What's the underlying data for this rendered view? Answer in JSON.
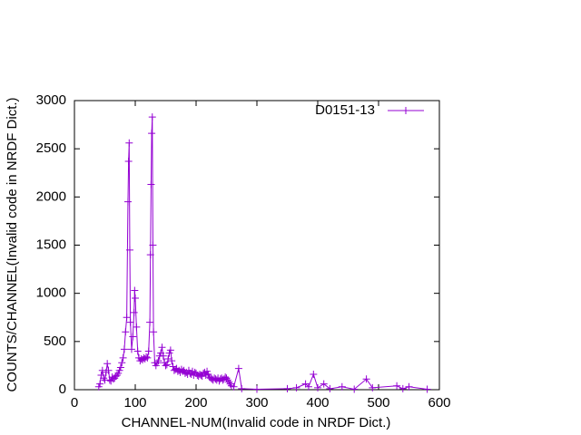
{
  "chart_data": {
    "type": "line",
    "x_label": "CHANNEL-NUM(Invalid code in NRDF Dict.)",
    "y_label": "COUNTS/CHANNEL(Invalid code in NRDF Dict.)",
    "xlim": [
      0,
      600
    ],
    "ylim": [
      0,
      3000
    ],
    "xticks": [
      0,
      100,
      200,
      300,
      400,
      500,
      600
    ],
    "yticks": [
      0,
      500,
      1000,
      1500,
      2000,
      2500,
      3000
    ],
    "grid": false,
    "legend": "top-right",
    "x": [
      40,
      42,
      44,
      46,
      48,
      50,
      52,
      54,
      56,
      58,
      60,
      62,
      64,
      66,
      68,
      70,
      72,
      74,
      76,
      78,
      80,
      82,
      84,
      86,
      88,
      89,
      90,
      91,
      92,
      94,
      96,
      98,
      99,
      100,
      102,
      104,
      106,
      108,
      110,
      112,
      114,
      116,
      118,
      120,
      122,
      124,
      125,
      126,
      127,
      128,
      129,
      130,
      132,
      134,
      136,
      138,
      140,
      142,
      144,
      146,
      148,
      150,
      152,
      154,
      156,
      158,
      160,
      162,
      164,
      166,
      168,
      170,
      172,
      174,
      176,
      178,
      180,
      182,
      184,
      186,
      188,
      190,
      192,
      194,
      196,
      198,
      200,
      202,
      204,
      206,
      208,
      210,
      212,
      214,
      216,
      218,
      220,
      222,
      224,
      226,
      228,
      230,
      232,
      234,
      236,
      238,
      240,
      242,
      244,
      246,
      248,
      250,
      252,
      254,
      256,
      258,
      262,
      270,
      275,
      300,
      350,
      365,
      380,
      385,
      393,
      400,
      410,
      420,
      440,
      460,
      480,
      490,
      530,
      540,
      550,
      580
    ],
    "series": [
      {
        "name": "D0151-13",
        "color": "#9400d3",
        "values": [
          30,
          60,
          150,
          200,
          120,
          100,
          180,
          270,
          200,
          100,
          90,
          130,
          110,
          120,
          140,
          150,
          170,
          200,
          230,
          280,
          330,
          420,
          600,
          750,
          1950,
          2370,
          2560,
          1450,
          700,
          420,
          550,
          800,
          1030,
          950,
          650,
          400,
          330,
          300,
          320,
          310,
          330,
          320,
          340,
          330,
          400,
          700,
          1400,
          2130,
          2660,
          2830,
          1500,
          600,
          280,
          250,
          280,
          300,
          350,
          380,
          440,
          350,
          280,
          250,
          260,
          320,
          380,
          410,
          300,
          240,
          200,
          210,
          220,
          190,
          200,
          180,
          210,
          190,
          200,
          170,
          180,
          160,
          200,
          170,
          160,
          190,
          150,
          180,
          170,
          150,
          140,
          160,
          150,
          140,
          170,
          180,
          150,
          190,
          160,
          130,
          120,
          110,
          100,
          120,
          110,
          100,
          120,
          90,
          110,
          120,
          100,
          110,
          130,
          120,
          100,
          80,
          60,
          40,
          30,
          220,
          10,
          5,
          10,
          20,
          60,
          30,
          160,
          20,
          60,
          10,
          30,
          5,
          110,
          20,
          40,
          10,
          30,
          5
        ]
      }
    ]
  }
}
